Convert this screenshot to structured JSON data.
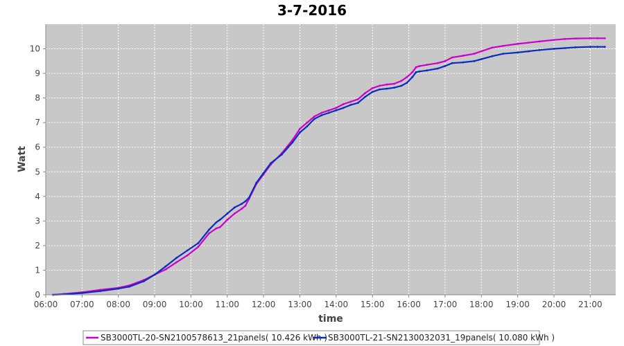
{
  "chart_data": {
    "type": "line",
    "title": "3-7-2016",
    "xlabel": "time",
    "ylabel": "Watt",
    "x_unit": "hours",
    "xlim": [
      6.0,
      21.7
    ],
    "ylim": [
      0,
      11
    ],
    "x_ticks": [
      6,
      7,
      8,
      9,
      10,
      11,
      12,
      13,
      14,
      15,
      16,
      17,
      18,
      19,
      20,
      21
    ],
    "x_tick_labels": [
      "06:00",
      "07:00",
      "08:00",
      "09:00",
      "10:00",
      "11:00",
      "12:00",
      "13:00",
      "14:00",
      "15:00",
      "16:00",
      "17:00",
      "18:00",
      "19:00",
      "20:00",
      "21:00"
    ],
    "y_ticks": [
      0,
      1,
      2,
      3,
      4,
      5,
      6,
      7,
      8,
      9,
      10
    ],
    "y_tick_labels": [
      "0",
      "1",
      "2",
      "3",
      "4",
      "5",
      "6",
      "7",
      "8",
      "9",
      "10"
    ],
    "grid": true,
    "legend_position": "bottom",
    "series": [
      {
        "name": "SB3000TL-20-SN2100578613_21panels( 10.426 kWh )",
        "color": "#cc00cc",
        "x": [
          6.2,
          6.5,
          7.0,
          7.5,
          8.0,
          8.3,
          8.7,
          9.0,
          9.3,
          9.6,
          9.9,
          10.2,
          10.5,
          10.7,
          10.8,
          11.0,
          11.2,
          11.4,
          11.5,
          11.6,
          11.8,
          12.0,
          12.2,
          12.5,
          12.8,
          13.0,
          13.2,
          13.4,
          13.6,
          13.8,
          14.0,
          14.2,
          14.4,
          14.6,
          14.8,
          15.0,
          15.2,
          15.4,
          15.6,
          15.8,
          15.95,
          16.1,
          16.2,
          16.3,
          16.5,
          16.8,
          17.0,
          17.2,
          17.5,
          17.8,
          18.0,
          18.3,
          18.6,
          19.0,
          19.3,
          19.6,
          20.0,
          20.3,
          20.6,
          21.0,
          21.2,
          21.4
        ],
        "y": [
          0.0,
          0.03,
          0.1,
          0.2,
          0.28,
          0.38,
          0.6,
          0.82,
          1.03,
          1.32,
          1.6,
          1.95,
          2.5,
          2.7,
          2.75,
          3.05,
          3.3,
          3.5,
          3.62,
          3.9,
          4.5,
          4.9,
          5.3,
          5.75,
          6.3,
          6.75,
          7.0,
          7.25,
          7.4,
          7.5,
          7.6,
          7.75,
          7.85,
          7.95,
          8.2,
          8.4,
          8.5,
          8.55,
          8.58,
          8.7,
          8.85,
          9.05,
          9.25,
          9.3,
          9.35,
          9.42,
          9.5,
          9.65,
          9.72,
          9.8,
          9.9,
          10.05,
          10.12,
          10.2,
          10.25,
          10.3,
          10.36,
          10.4,
          10.42,
          10.43,
          10.43,
          10.43
        ]
      },
      {
        "name": "SB3000TL-21-SN2130032031_19panels( 10.080 kWh )",
        "color": "#0a2cbe",
        "x": [
          6.2,
          6.5,
          7.0,
          7.5,
          8.0,
          8.3,
          8.7,
          9.0,
          9.3,
          9.6,
          9.9,
          10.2,
          10.5,
          10.7,
          10.8,
          11.0,
          11.2,
          11.4,
          11.5,
          11.6,
          11.8,
          12.0,
          12.2,
          12.5,
          12.8,
          13.0,
          13.2,
          13.4,
          13.6,
          13.8,
          14.0,
          14.2,
          14.4,
          14.6,
          14.8,
          15.0,
          15.2,
          15.4,
          15.6,
          15.8,
          15.95,
          16.1,
          16.2,
          16.3,
          16.5,
          16.8,
          17.0,
          17.2,
          17.5,
          17.8,
          18.0,
          18.3,
          18.6,
          19.0,
          19.3,
          19.6,
          20.0,
          20.3,
          20.6,
          21.0,
          21.2,
          21.4
        ],
        "y": [
          0.0,
          0.02,
          0.07,
          0.15,
          0.25,
          0.33,
          0.55,
          0.82,
          1.15,
          1.5,
          1.8,
          2.1,
          2.65,
          2.95,
          3.05,
          3.3,
          3.55,
          3.7,
          3.8,
          3.95,
          4.55,
          4.95,
          5.35,
          5.7,
          6.2,
          6.6,
          6.85,
          7.15,
          7.3,
          7.4,
          7.5,
          7.6,
          7.72,
          7.8,
          8.05,
          8.25,
          8.35,
          8.38,
          8.42,
          8.5,
          8.62,
          8.85,
          9.05,
          9.08,
          9.12,
          9.2,
          9.3,
          9.42,
          9.45,
          9.5,
          9.58,
          9.7,
          9.8,
          9.85,
          9.9,
          9.95,
          10.0,
          10.03,
          10.06,
          10.08,
          10.08,
          10.08
        ]
      }
    ]
  }
}
